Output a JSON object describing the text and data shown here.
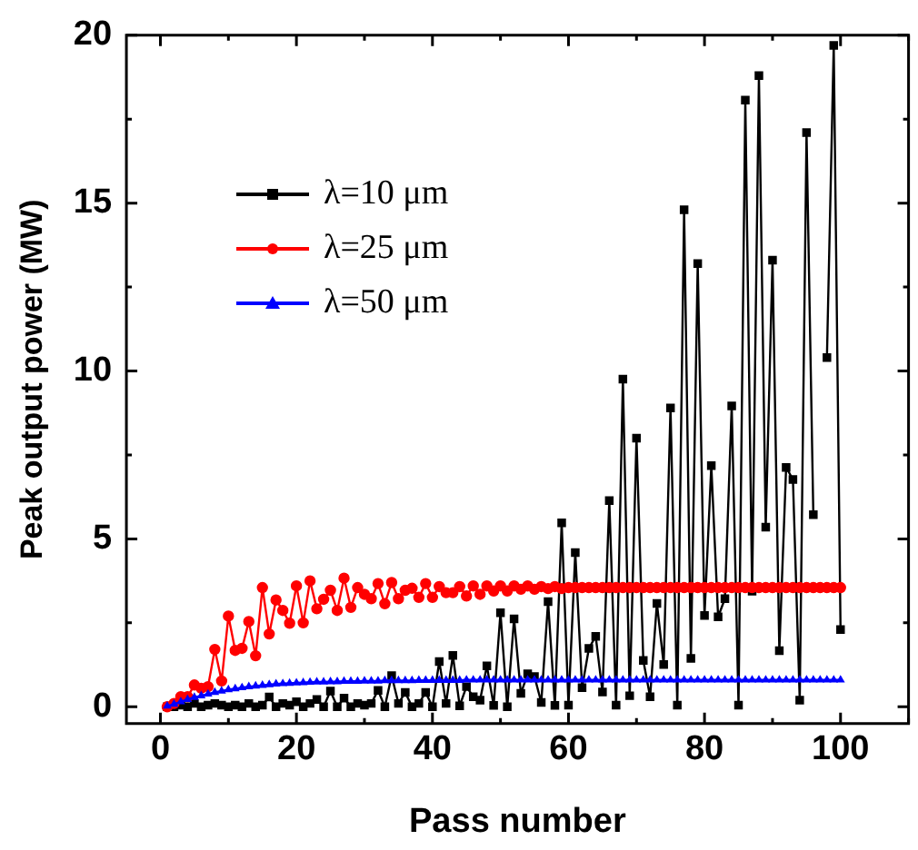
{
  "chart_data": {
    "type": "line",
    "xlabel": "Pass number",
    "ylabel": "Peak output power (MW)",
    "x": [
      1,
      2,
      3,
      4,
      5,
      6,
      7,
      8,
      9,
      10,
      11,
      12,
      13,
      14,
      15,
      16,
      17,
      18,
      19,
      20,
      21,
      22,
      23,
      24,
      25,
      26,
      27,
      28,
      29,
      30,
      31,
      32,
      33,
      34,
      35,
      36,
      37,
      38,
      39,
      40,
      41,
      42,
      43,
      44,
      45,
      46,
      47,
      48,
      49,
      50,
      51,
      52,
      53,
      54,
      55,
      56,
      57,
      58,
      59,
      60,
      61,
      62,
      63,
      64,
      65,
      66,
      67,
      68,
      69,
      70,
      71,
      72,
      73,
      74,
      75,
      76,
      77,
      78,
      79,
      80,
      81,
      82,
      83,
      84,
      85,
      86,
      87,
      88,
      89,
      90,
      91,
      92,
      93,
      94,
      95,
      96,
      97,
      98,
      99,
      100
    ],
    "series": [
      {
        "name": "λ=10 μm",
        "color": "#000000",
        "marker": "square",
        "values": [
          0,
          0,
          0.05,
          0,
          0.1,
          0,
          0.05,
          0.1,
          0.05,
          0,
          0.05,
          0,
          0.1,
          0,
          0.05,
          0.29,
          0,
          0.1,
          0.05,
          0.15,
          0,
          0.1,
          0.22,
          0,
          0.47,
          0,
          0.26,
          0,
          0.1,
          0.05,
          0.1,
          0.49,
          0,
          0.93,
          0.1,
          0.43,
          0,
          0.1,
          0.43,
          0,
          1.35,
          0.1,
          1.53,
          0.03,
          0.6,
          0.3,
          0.2,
          1.22,
          0.04,
          2.8,
          0,
          2.62,
          0.4,
          0.98,
          0.9,
          0.13,
          3.13,
          0.04,
          5.48,
          0.05,
          4.59,
          0.57,
          1.74,
          2.1,
          0.44,
          6.14,
          0.05,
          9.76,
          0.33,
          8.0,
          1.38,
          0.3,
          3.08,
          1.26,
          8.9,
          0.05,
          14.8,
          1.44,
          13.2,
          2.72,
          7.18,
          2.68,
          3.22,
          8.96,
          0.05,
          18.07,
          3.44,
          18.8,
          5.35,
          13.3,
          1.67,
          7.13,
          6.77,
          0.2,
          17.1,
          5.72,
          null,
          10.4,
          19.7,
          2.3
        ]
      },
      {
        "name": "λ=25 μm",
        "color": "#ff0000",
        "marker": "circle",
        "values": [
          0,
          0.1,
          0.3,
          0.3,
          0.65,
          0.55,
          0.6,
          1.71,
          0.77,
          2.7,
          1.68,
          1.74,
          2.54,
          1.52,
          3.55,
          2.17,
          3.18,
          2.87,
          2.49,
          3.6,
          2.5,
          3.75,
          2.92,
          3.2,
          3.47,
          2.87,
          3.83,
          2.96,
          3.55,
          3.35,
          3.22,
          3.67,
          3.07,
          3.7,
          3.22,
          3.47,
          3.53,
          3.26,
          3.67,
          3.26,
          3.58,
          3.4,
          3.4,
          3.58,
          3.3,
          3.6,
          3.35,
          3.6,
          3.45,
          3.6,
          3.45,
          3.6,
          3.5,
          3.6,
          3.5,
          3.58,
          3.52,
          3.58,
          3.52,
          3.55,
          3.55,
          3.55,
          3.55,
          3.55,
          3.55,
          3.55,
          3.55,
          3.55,
          3.55,
          3.55,
          3.55,
          3.55,
          3.55,
          3.55,
          3.55,
          3.55,
          3.55,
          3.55,
          3.55,
          3.55,
          3.55,
          3.55,
          3.55,
          3.55,
          3.55,
          3.55,
          3.55,
          3.55,
          3.55,
          3.55,
          3.55,
          3.55,
          3.55,
          3.55,
          3.55,
          3.55,
          3.55,
          3.55,
          3.55,
          3.55
        ]
      },
      {
        "name": "λ=50 μm",
        "color": "#0000ff",
        "marker": "triangle",
        "values": [
          0.02,
          0.08,
          0.15,
          0.22,
          0.28,
          0.33,
          0.38,
          0.43,
          0.47,
          0.51,
          0.54,
          0.57,
          0.6,
          0.62,
          0.64,
          0.66,
          0.68,
          0.69,
          0.7,
          0.71,
          0.72,
          0.73,
          0.74,
          0.74,
          0.75,
          0.75,
          0.76,
          0.76,
          0.76,
          0.77,
          0.77,
          0.77,
          0.78,
          0.78,
          0.78,
          0.78,
          0.78,
          0.79,
          0.79,
          0.79,
          0.79,
          0.79,
          0.79,
          0.79,
          0.8,
          0.8,
          0.8,
          0.8,
          0.8,
          0.8,
          0.8,
          0.8,
          0.8,
          0.8,
          0.8,
          0.8,
          0.8,
          0.8,
          0.8,
          0.8,
          0.8,
          0.8,
          0.8,
          0.8,
          0.8,
          0.8,
          0.8,
          0.8,
          0.8,
          0.8,
          0.8,
          0.8,
          0.8,
          0.8,
          0.8,
          0.8,
          0.8,
          0.8,
          0.8,
          0.8,
          0.8,
          0.8,
          0.8,
          0.8,
          0.8,
          0.8,
          0.8,
          0.8,
          0.8,
          0.8,
          0.8,
          0.8,
          0.8,
          0.8,
          0.8,
          0.8,
          0.8,
          0.8,
          0.8,
          0.8
        ]
      }
    ],
    "xlim": [
      -5,
      110
    ],
    "xticks": [
      0,
      20,
      40,
      60,
      80,
      100
    ],
    "ylim": [
      -0.5,
      20
    ],
    "yticks": [
      0,
      5,
      10,
      15,
      20
    ],
    "grid": false,
    "legend": "top left",
    "line_style": "solid"
  }
}
